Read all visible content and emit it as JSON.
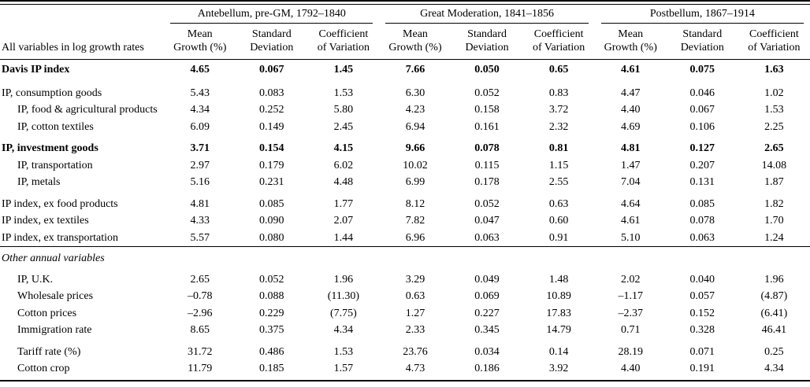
{
  "page": {
    "background_color": "#ffffff",
    "text_color": "#000000"
  },
  "table": {
    "stub_header": "All variables in log growth rates",
    "groups": [
      {
        "label": "Antebellum, pre-GM, 1792–1840",
        "columns": [
          {
            "line1": "Mean",
            "line2": "Growth (%)"
          },
          {
            "line1": "Standard",
            "line2": "Deviation"
          },
          {
            "line1": "Coefficient",
            "line2": "of Variation"
          }
        ]
      },
      {
        "label": "Great Moderation, 1841–1856",
        "columns": [
          {
            "line1": "Mean",
            "line2": "Growth (%)"
          },
          {
            "line1": "Standard",
            "line2": "Deviation"
          },
          {
            "line1": "Coefficient",
            "line2": "of Variation"
          }
        ]
      },
      {
        "label": "Postbellum, 1867–1914",
        "columns": [
          {
            "line1": "Mean",
            "line2": "Growth (%)"
          },
          {
            "line1": "Standard",
            "line2": "Deviation"
          },
          {
            "line1": "Coefficient",
            "line2": "of Variation"
          }
        ]
      }
    ],
    "rows": [
      {
        "label": "Davis IP index",
        "bold": true,
        "first": true,
        "values": [
          "4.65",
          "0.067",
          "1.45",
          "7.66",
          "0.050",
          "0.65",
          "4.61",
          "0.075",
          "1.63"
        ]
      },
      {
        "label": "IP, consumption goods",
        "gap": true,
        "values": [
          "5.43",
          "0.083",
          "1.53",
          "6.30",
          "0.052",
          "0.83",
          "4.47",
          "0.046",
          "1.02"
        ]
      },
      {
        "label": "IP, food & agricultural products",
        "indent": true,
        "values": [
          "4.34",
          "0.252",
          "5.80",
          "4.23",
          "0.158",
          "3.72",
          "4.40",
          "0.067",
          "1.53"
        ]
      },
      {
        "label": "IP, cotton textiles",
        "indent": true,
        "values": [
          "6.09",
          "0.149",
          "2.45",
          "6.94",
          "0.161",
          "2.32",
          "4.69",
          "0.106",
          "2.25"
        ]
      },
      {
        "label": "IP, investment goods",
        "bold": true,
        "gap": true,
        "values": [
          "3.71",
          "0.154",
          "4.15",
          "9.66",
          "0.078",
          "0.81",
          "4.81",
          "0.127",
          "2.65"
        ]
      },
      {
        "label": "IP, transportation",
        "indent": true,
        "values": [
          "2.97",
          "0.179",
          "6.02",
          "10.02",
          "0.115",
          "1.15",
          "1.47",
          "0.207",
          "14.08"
        ]
      },
      {
        "label": "IP, metals",
        "indent": true,
        "values": [
          "5.16",
          "0.231",
          "4.48",
          "6.99",
          "0.178",
          "2.55",
          "7.04",
          "0.131",
          "1.87"
        ]
      },
      {
        "label": "IP index, ex food products",
        "gap": true,
        "values": [
          "4.81",
          "0.085",
          "1.77",
          "8.12",
          "0.052",
          "0.63",
          "4.64",
          "0.085",
          "1.82"
        ]
      },
      {
        "label": "IP index, ex textiles",
        "values": [
          "4.33",
          "0.090",
          "2.07",
          "7.82",
          "0.047",
          "0.60",
          "4.61",
          "0.078",
          "1.70"
        ]
      },
      {
        "label": "IP index, ex transportation",
        "values": [
          "5.57",
          "0.080",
          "1.44",
          "6.96",
          "0.063",
          "0.91",
          "5.10",
          "0.063",
          "1.24"
        ]
      },
      {
        "label": "Other annual variables",
        "italic": true,
        "section": true,
        "rule": true,
        "values": []
      },
      {
        "label": "IP, U.K.",
        "indent": true,
        "gap": true,
        "values": [
          "2.65",
          "0.052",
          "1.96",
          "3.29",
          "0.049",
          "1.48",
          "2.02",
          "0.040",
          "1.96"
        ]
      },
      {
        "label": "Wholesale prices",
        "indent": true,
        "values": [
          "–0.78",
          "0.088",
          "(11.30)",
          "0.63",
          "0.069",
          "10.89",
          "–1.17",
          "0.057",
          "(4.87)"
        ]
      },
      {
        "label": "Cotton prices",
        "indent": true,
        "values": [
          "–2.96",
          "0.229",
          "(7.75)",
          "1.27",
          "0.227",
          "17.83",
          "–2.37",
          "0.152",
          "(6.41)"
        ]
      },
      {
        "label": "Immigration rate",
        "indent": true,
        "values": [
          "8.65",
          "0.375",
          "4.34",
          "2.33",
          "0.345",
          "14.79",
          "0.71",
          "0.328",
          "46.41"
        ]
      },
      {
        "label": "Tariff rate (%)",
        "indent": true,
        "gap": true,
        "values": [
          "31.72",
          "0.486",
          "1.53",
          "23.76",
          "0.034",
          "0.14",
          "28.19",
          "0.071",
          "0.25"
        ]
      },
      {
        "label": "Cotton crop",
        "indent": true,
        "last": true,
        "values": [
          "11.79",
          "0.185",
          "1.57",
          "4.73",
          "0.186",
          "3.92",
          "4.40",
          "0.191",
          "4.34"
        ]
      }
    ]
  }
}
